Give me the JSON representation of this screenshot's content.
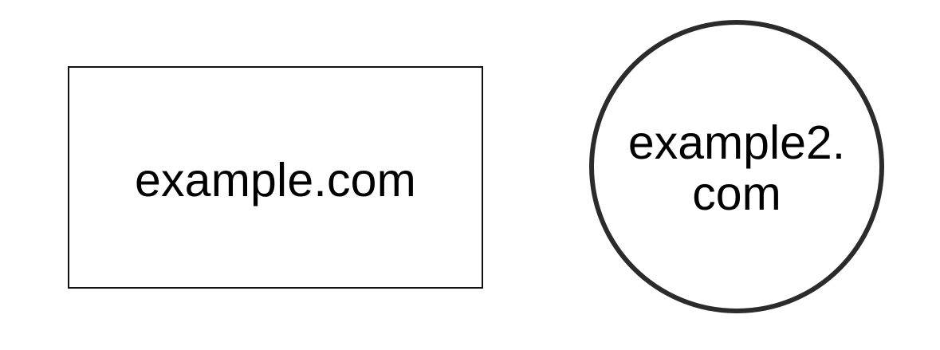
{
  "diagram": {
    "nodes": [
      {
        "shape": "rectangle",
        "label": "example.com"
      },
      {
        "shape": "circle",
        "label_line_1": "example2.",
        "label_line_2": "com"
      }
    ],
    "colors": {
      "background": "#ffffff",
      "rectangle_border": "#111111",
      "circle_border": "#2b2b2b",
      "text": "#000000"
    }
  }
}
